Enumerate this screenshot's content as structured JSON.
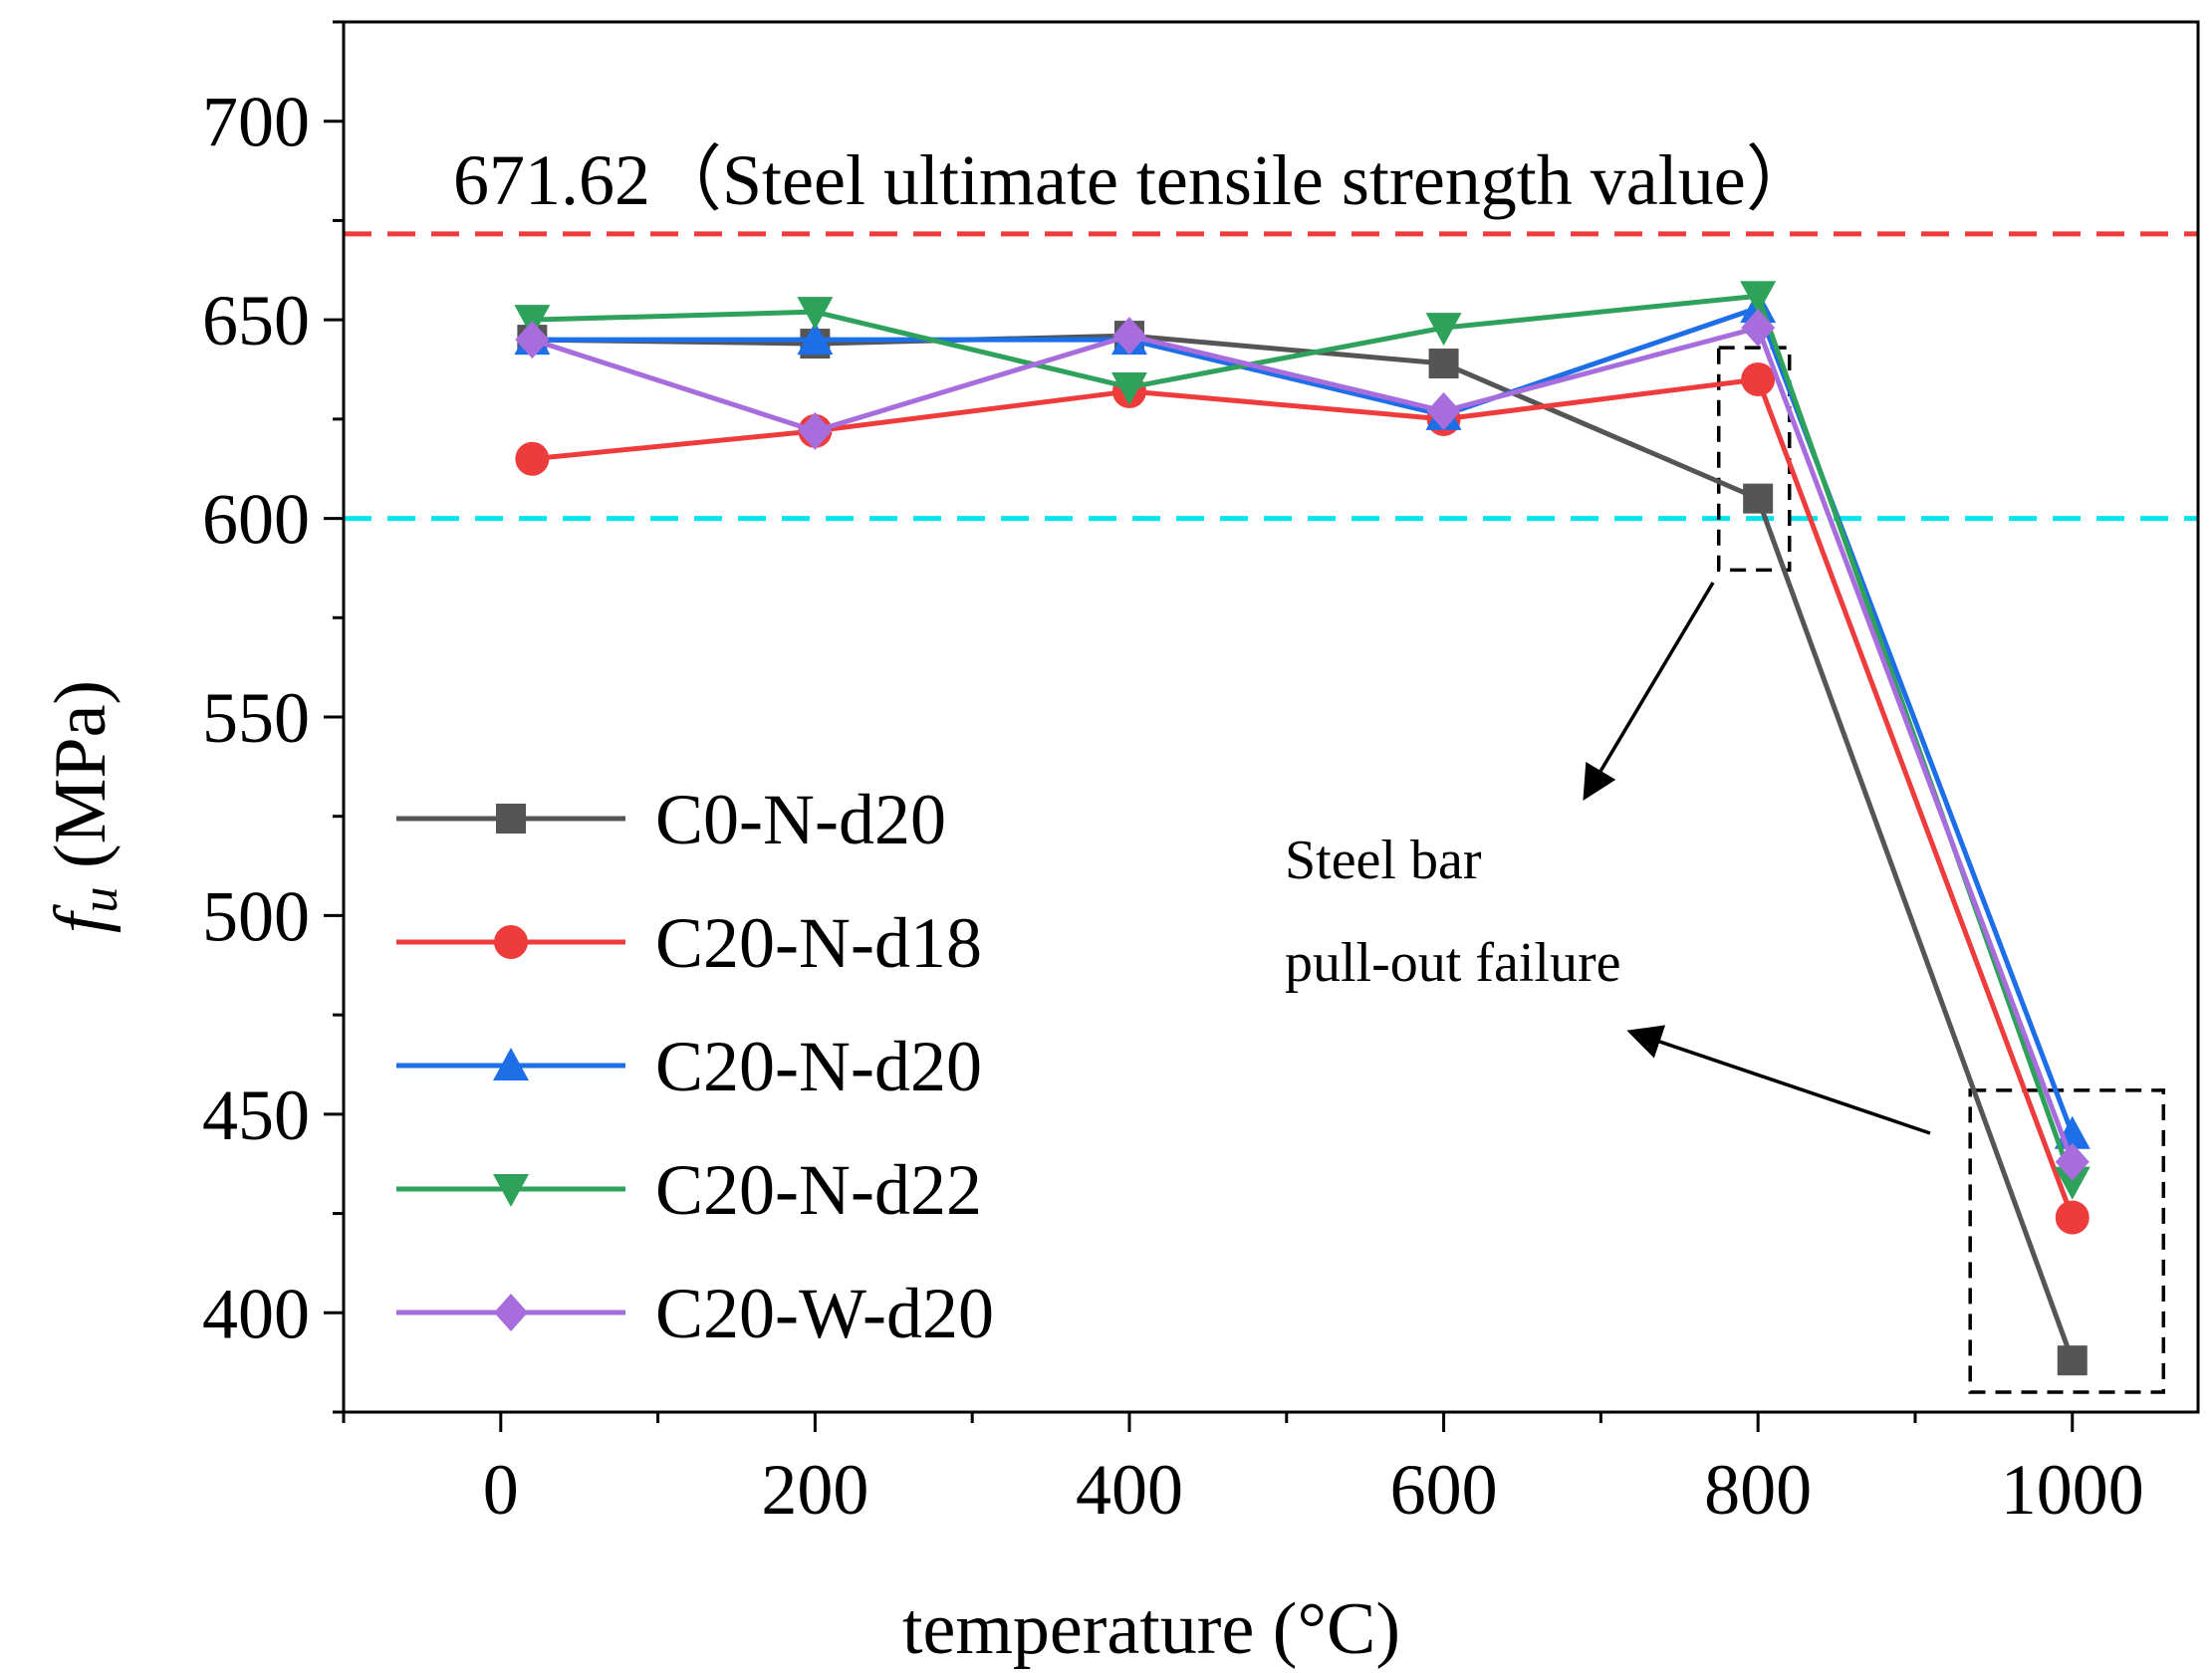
{
  "chart_data": {
    "type": "line",
    "xlabel": "temperature (°C)",
    "ylabel_symbol": "f",
    "ylabel_subscript": "u",
    "ylabel_unit": " (MPa)",
    "xlim": [
      -100,
      1080
    ],
    "ylim": [
      375,
      725
    ],
    "xticks": [
      0,
      200,
      400,
      600,
      800,
      1000
    ],
    "yticks": [
      400,
      450,
      500,
      550,
      600,
      650,
      700
    ],
    "x": [
      20,
      200,
      400,
      600,
      800,
      1000
    ],
    "series": [
      {
        "name": "C0-N-d20",
        "color": "#555555",
        "marker": "square",
        "values": [
          645,
          644,
          646,
          639,
          605,
          388
        ]
      },
      {
        "name": "C20-N-d18",
        "color": "#ee3b3b",
        "marker": "circle",
        "values": [
          615,
          622,
          632,
          625,
          635,
          424
        ]
      },
      {
        "name": "C20-N-d20",
        "color": "#1e6ee8",
        "marker": "triangle-up",
        "values": [
          645,
          645,
          645,
          626,
          653,
          445
        ]
      },
      {
        "name": "C20-N-d22",
        "color": "#2ea15a",
        "marker": "triangle-down",
        "values": [
          650,
          652,
          633,
          648,
          656,
          433
        ]
      },
      {
        "name": "C20-W-d20",
        "color": "#a86ddc",
        "marker": "diamond",
        "values": [
          645,
          622,
          646,
          627,
          648,
          438
        ]
      }
    ],
    "reference_lines": [
      {
        "value": 671.62,
        "color": "#ee3b3b",
        "label": "671.62（Steel ultimate tensile strength value）"
      },
      {
        "value": 600,
        "color": "#00e5ee",
        "label": ""
      }
    ],
    "annotation": {
      "lines": [
        "Steel bar",
        "pull-out failure"
      ],
      "boxes": [
        {
          "x": [
            775,
            820
          ],
          "y": [
            587,
            643
          ]
        },
        {
          "x": [
            935,
            1058
          ],
          "y": [
            380,
            456
          ]
        }
      ]
    },
    "legend_position": "bottom-left"
  }
}
